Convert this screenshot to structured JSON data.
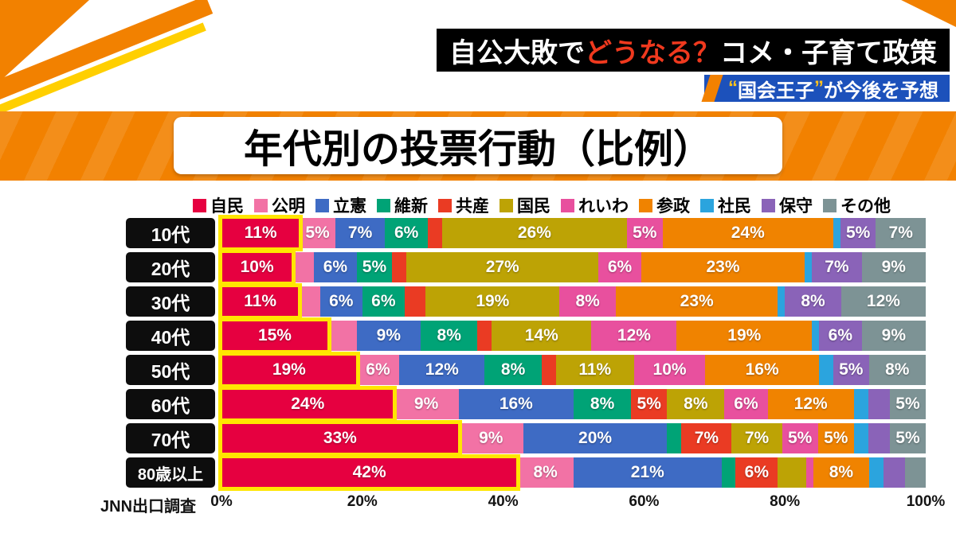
{
  "header": {
    "headline": {
      "pre": "自公大敗で",
      "highlight": "どうなる？",
      "post": "コメ・子育て政策"
    },
    "sub": {
      "quote_open": "“",
      "name": "国会王子",
      "quote_close": "”",
      "rest": "が今後を予想"
    }
  },
  "banner": {
    "title": "年代別の投票行動（比例）"
  },
  "footer": {
    "source_label": "JNN出口調査"
  },
  "chart_data": {
    "type": "bar",
    "variant": "stacked-horizontal",
    "title": "年代別の投票行動（比例）",
    "source": "JNN出口調査",
    "label_threshold": 5,
    "x_axis": {
      "ticks": [
        "0%",
        "20%",
        "40%",
        "60%",
        "80%",
        "100%"
      ],
      "range": [
        0,
        100
      ]
    },
    "highlight": {
      "party": "自民",
      "color": "#ffe600"
    },
    "parties": [
      {
        "key": "jimin",
        "name": "自民",
        "color": "#e60040"
      },
      {
        "key": "komei",
        "name": "公明",
        "color": "#f272a5"
      },
      {
        "key": "rikken",
        "name": "立憲",
        "color": "#3e6bc4"
      },
      {
        "key": "ishin",
        "name": "維新",
        "color": "#00a376"
      },
      {
        "key": "kyosan",
        "name": "共産",
        "color": "#ea3b23"
      },
      {
        "key": "kokumin",
        "name": "国民",
        "color": "#bda305"
      },
      {
        "key": "reiwa",
        "name": "れいわ",
        "color": "#e8509e"
      },
      {
        "key": "sansei",
        "name": "参政",
        "color": "#f08300"
      },
      {
        "key": "shamin",
        "name": "社民",
        "color": "#2ba4de"
      },
      {
        "key": "hoshu",
        "name": "保守",
        "color": "#8a63b8"
      },
      {
        "key": "sonota",
        "name": "その他",
        "color": "#7d9395"
      }
    ],
    "rows": [
      {
        "age": "10代",
        "values": [
          11,
          5,
          7,
          6,
          2,
          26,
          5,
          24,
          1,
          5,
          7
        ]
      },
      {
        "age": "20代",
        "values": [
          10,
          3,
          6,
          5,
          2,
          27,
          6,
          23,
          1,
          7,
          9
        ]
      },
      {
        "age": "30代",
        "values": [
          11,
          3,
          6,
          6,
          3,
          19,
          8,
          23,
          1,
          8,
          12
        ]
      },
      {
        "age": "40代",
        "values": [
          15,
          4,
          9,
          8,
          2,
          14,
          12,
          19,
          1,
          6,
          9
        ]
      },
      {
        "age": "50代",
        "values": [
          19,
          6,
          12,
          8,
          2,
          11,
          10,
          16,
          2,
          5,
          8
        ]
      },
      {
        "age": "60代",
        "values": [
          24,
          9,
          16,
          8,
          5,
          8,
          6,
          12,
          2,
          3,
          5
        ]
      },
      {
        "age": "70代",
        "values": [
          33,
          9,
          20,
          2,
          7,
          7,
          5,
          5,
          2,
          3,
          5
        ]
      },
      {
        "age": "80歳以上",
        "values": [
          42,
          8,
          21,
          2,
          6,
          4,
          1,
          8,
          2,
          3,
          3
        ]
      }
    ]
  }
}
